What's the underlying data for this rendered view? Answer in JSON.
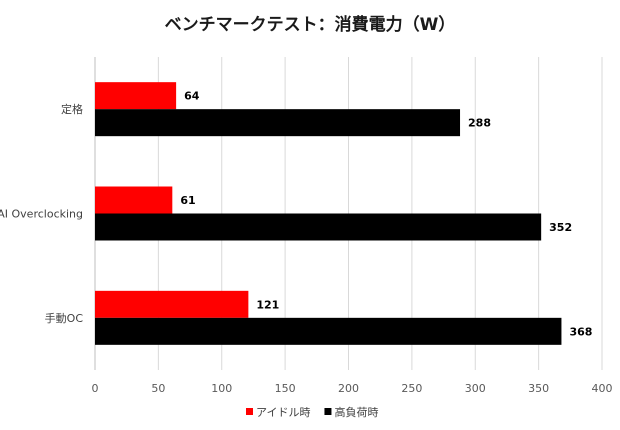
{
  "chart_data": {
    "type": "bar",
    "orientation": "horizontal",
    "title": "ベンチマークテスト：消費電力（W）",
    "categories": [
      "定格",
      "AI Overclocking",
      "手動OC"
    ],
    "series": [
      {
        "name": "アイドル時",
        "color": "#ff0000",
        "values": [
          64,
          61,
          121
        ]
      },
      {
        "name": "高負荷時",
        "color": "#000000",
        "values": [
          288,
          352,
          368
        ]
      }
    ],
    "xlim": [
      0,
      400
    ],
    "xticks": [
      0,
      50,
      100,
      150,
      200,
      250,
      300,
      350,
      400
    ],
    "grid": true,
    "legend_position": "bottom",
    "data_labels": true
  }
}
